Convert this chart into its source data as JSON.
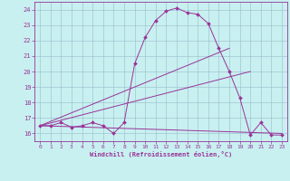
{
  "xlabel": "Windchill (Refroidissement éolien,°C)",
  "bg_color": "#c8f0f0",
  "line_color": "#993399",
  "grid_color": "#99bbcc",
  "xlim": [
    -0.5,
    23.5
  ],
  "ylim": [
    15.5,
    24.5
  ],
  "yticks": [
    16,
    17,
    18,
    19,
    20,
    21,
    22,
    23,
    24
  ],
  "xticks": [
    0,
    1,
    2,
    3,
    4,
    5,
    6,
    7,
    8,
    9,
    10,
    11,
    12,
    13,
    14,
    15,
    16,
    17,
    18,
    19,
    20,
    21,
    22,
    23
  ],
  "series": [
    {
      "x": [
        0,
        1,
        2,
        3,
        4,
        5,
        6,
        7,
        8,
        9,
        10,
        11,
        12,
        13,
        14,
        15,
        16,
        17,
        18,
        19,
        20,
        21,
        22,
        23
      ],
      "y": [
        16.5,
        16.5,
        16.7,
        16.4,
        16.5,
        16.7,
        16.5,
        16.0,
        16.7,
        20.5,
        22.2,
        23.3,
        23.9,
        24.1,
        23.8,
        23.7,
        23.1,
        21.5,
        20.0,
        18.3,
        15.9,
        16.7,
        15.9,
        15.9
      ],
      "marker": true
    },
    {
      "x": [
        0,
        18
      ],
      "y": [
        16.5,
        21.5
      ],
      "marker": false
    },
    {
      "x": [
        0,
        20
      ],
      "y": [
        16.5,
        20.0
      ],
      "marker": false
    },
    {
      "x": [
        0,
        23
      ],
      "y": [
        16.5,
        16.0
      ],
      "marker": false
    }
  ]
}
